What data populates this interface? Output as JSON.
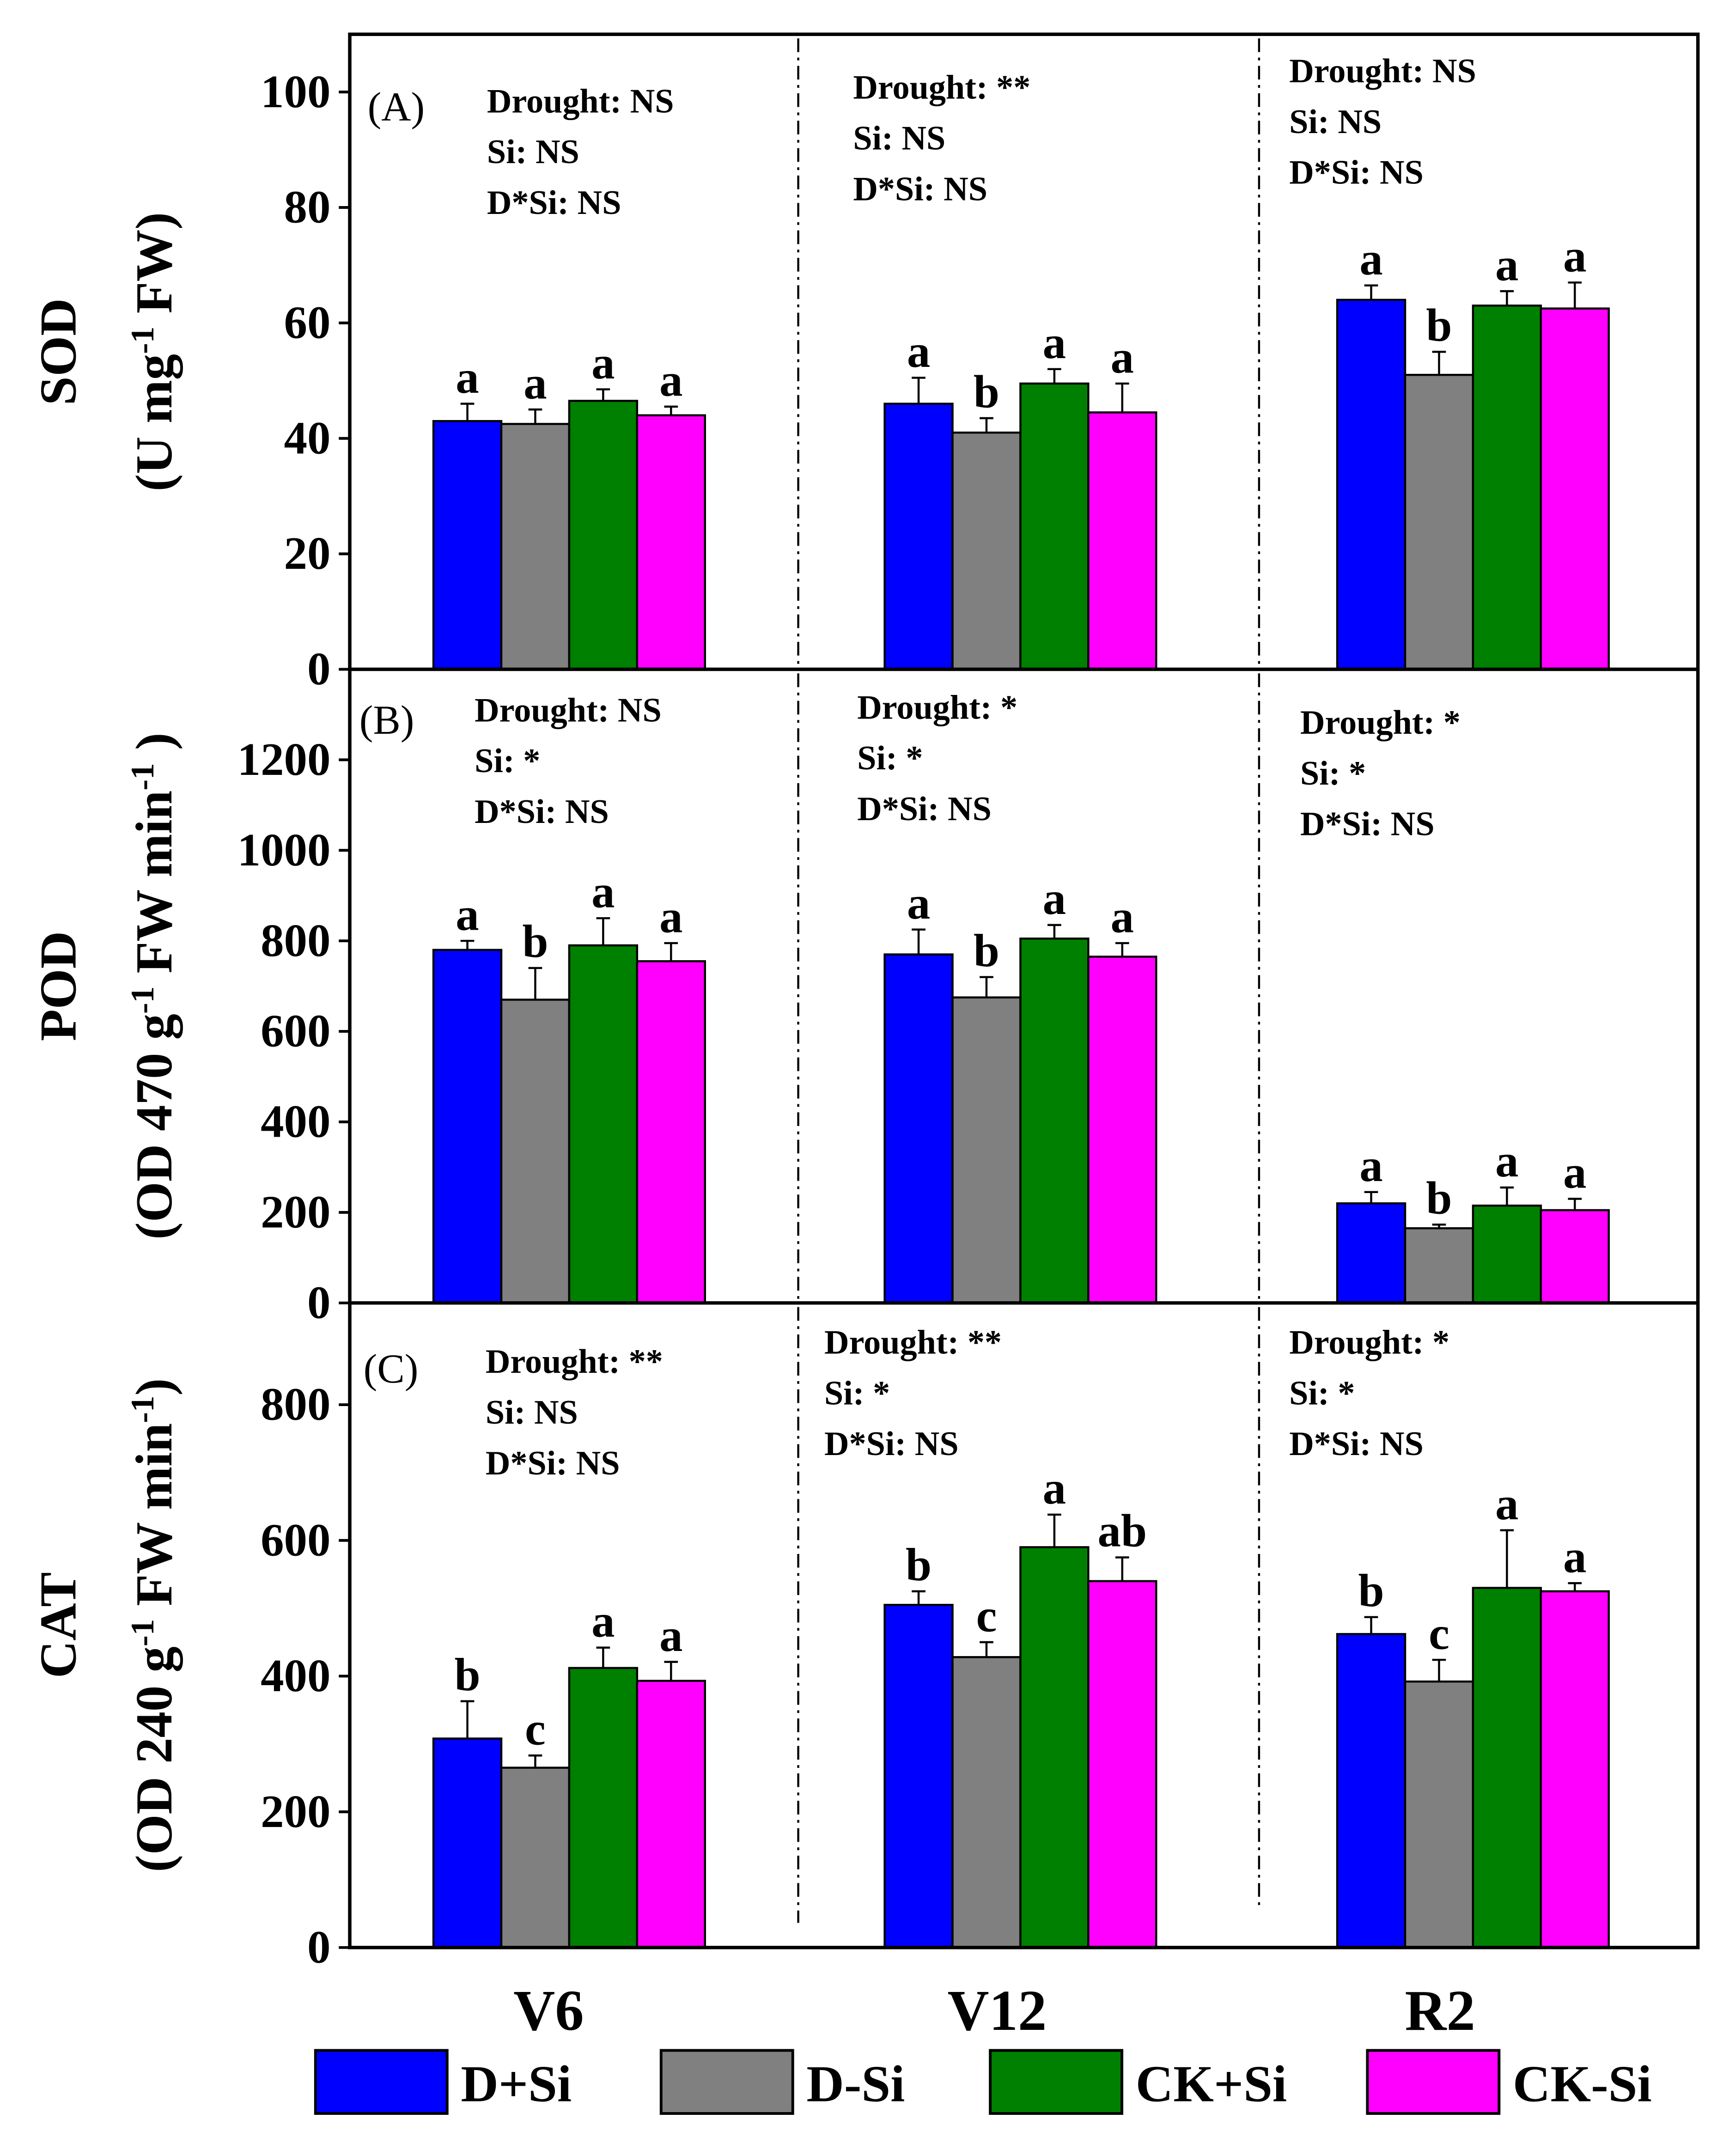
{
  "chart_data": {
    "type": "bar",
    "categories": [
      "V6",
      "V12",
      "R2"
    ],
    "legend": {
      "placement": "bottom",
      "entries": [
        {
          "name": "D+Si",
          "color": "#0000ff"
        },
        {
          "name": "D-Si",
          "color": "#808080"
        },
        {
          "name": "CK+Si",
          "color": "#008000"
        },
        {
          "name": "CK-Si",
          "color": "#ff00ff"
        }
      ]
    },
    "panels": [
      {
        "label": "(A)",
        "ylabel_main": "SOD",
        "ylabel_unit": [
          "(U mg",
          "-1",
          " FW)"
        ],
        "ylim": [
          0,
          110
        ],
        "yticks": [
          0,
          20,
          40,
          60,
          80,
          100
        ],
        "series_values": [
          [
            43,
            42.5,
            46.5,
            44
          ],
          [
            46,
            41,
            49.5,
            44.5
          ],
          [
            64,
            51,
            63,
            62.5
          ]
        ],
        "errors": [
          [
            3,
            2.5,
            2,
            1.5
          ],
          [
            4.5,
            2.5,
            2.5,
            5
          ],
          [
            2.5,
            4,
            2.5,
            4.5
          ]
        ],
        "letters": [
          [
            "a",
            "a",
            "a",
            "a"
          ],
          [
            "a",
            "b",
            "a",
            "a"
          ],
          [
            "a",
            "b",
            "a",
            "a"
          ]
        ],
        "stats": [
          [
            "Drought: NS",
            "Si: NS",
            "D*Si: NS"
          ],
          [
            "Drought: **",
            "Si: NS",
            "D*Si: NS"
          ],
          [
            "Drought: NS",
            "Si: NS",
            "D*Si: NS"
          ]
        ]
      },
      {
        "label": "(B)",
        "ylabel_main": "POD",
        "ylabel_unit": [
          "(OD 470 g",
          "-1",
          " FW min",
          "-1",
          " )"
        ],
        "ylim": [
          0,
          1400
        ],
        "yticks": [
          0,
          200,
          400,
          600,
          800,
          1000,
          1200
        ],
        "series_values": [
          [
            780,
            670,
            790,
            755
          ],
          [
            770,
            675,
            805,
            765
          ],
          [
            220,
            165,
            215,
            205
          ]
        ],
        "errors": [
          [
            20,
            70,
            60,
            40
          ],
          [
            55,
            45,
            30,
            30
          ],
          [
            25,
            8,
            40,
            25
          ]
        ],
        "letters": [
          [
            "a",
            "b",
            "a",
            "a"
          ],
          [
            "a",
            "b",
            "a",
            "a"
          ],
          [
            "a",
            "b",
            "a",
            "a"
          ]
        ],
        "stats": [
          [
            "Drought: NS",
            "Si: *",
            "D*Si: NS"
          ],
          [
            "Drought: *",
            "Si: *",
            "D*Si: NS"
          ],
          [
            "Drought: *",
            "Si: *",
            "D*Si: NS"
          ]
        ]
      },
      {
        "label": "(C)",
        "ylabel_main": "CAT",
        "ylabel_unit": [
          "(OD 240  g",
          "-1",
          " FW min",
          "-1",
          ")"
        ],
        "ylim": [
          0,
          950
        ],
        "yticks": [
          0,
          200,
          400,
          600,
          800
        ],
        "series_values": [
          [
            308,
            265,
            412,
            393
          ],
          [
            505,
            428,
            590,
            540
          ],
          [
            462,
            392,
            530,
            525
          ]
        ],
        "errors": [
          [
            55,
            18,
            30,
            28
          ],
          [
            20,
            22,
            48,
            35
          ],
          [
            25,
            32,
            85,
            12
          ]
        ],
        "letters": [
          [
            "b",
            "c",
            "a",
            "a"
          ],
          [
            "b",
            "c",
            "a",
            "ab"
          ],
          [
            "b",
            "c",
            "a",
            "a"
          ]
        ],
        "stats": [
          [
            "Drought: **",
            "Si: NS",
            "D*Si: NS"
          ],
          [
            "Drought: **",
            "Si: *",
            "D*Si: NS"
          ],
          [
            "Drought: *",
            "Si: *",
            "D*Si: NS"
          ]
        ]
      }
    ]
  }
}
